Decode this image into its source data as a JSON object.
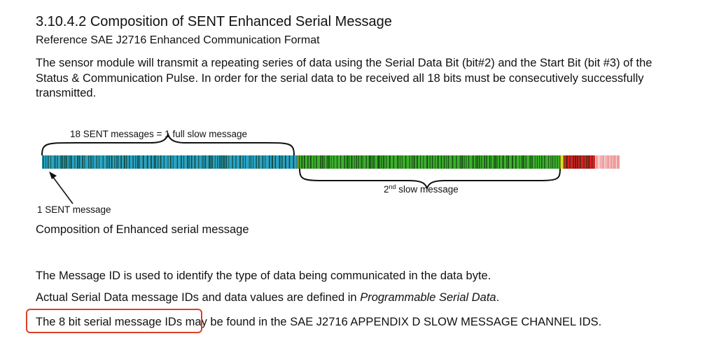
{
  "section": {
    "number": "3.10.4.2",
    "title": "Composition of SENT Enhanced Serial Message",
    "reference": "Reference SAE J2716 Enhanced Communication Format",
    "paragraph": "The sensor module will transmit a repeating series of data using the Serial Data Bit (bit#2) and the Start Bit (bit #3) of the Status & Communication Pulse.  In order for the serial data to be received all 18 bits must be consecutively successfully transmitted."
  },
  "figure": {
    "top_label": "18 SENT messages = 1 full slow message",
    "bottom_label_ordinal": "2",
    "bottom_label_sup": "nd",
    "bottom_label_rest": " slow message",
    "arrow_label": "1 SENT message",
    "caption": "Composition of Enhanced serial message",
    "colors": {
      "first_slow_message": "#2aa3c4",
      "second_slow_message": "#3cb02c",
      "transition": "#d8e21a",
      "third_start": "#d82222"
    }
  },
  "body": {
    "line1": "The Message ID is used to identify the type of data being communicated in the data byte.",
    "line2_start": "Actual Serial Data message IDs and data values are defined in ",
    "line2_emph": "Programmable Serial Data",
    "line2_end": ".",
    "line3_highlighted": "The 8 bit serial message IDs",
    "line3_rest": " may be found in the SAE J2716 APPENDIX D SLOW MESSAGE CHANNEL IDS."
  },
  "highlight_color": "#d9402b"
}
